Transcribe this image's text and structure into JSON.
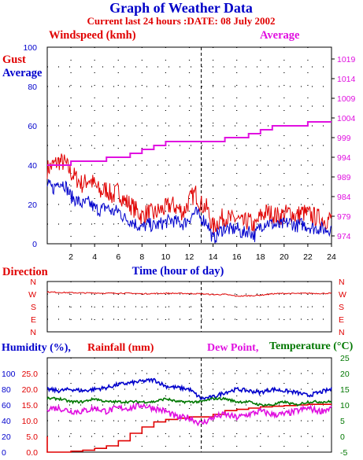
{
  "title": "Graph of Weather Data",
  "subtitle": "Current last 24 hours :DATE: 08 July 2002",
  "colors": {
    "title": "#0000c8",
    "red": "#e00000",
    "blue": "#0000cc",
    "magenta": "#e010e0",
    "green": "#007700",
    "grid": "#000000"
  },
  "labels": {
    "windspeed": "Windspeed (kmh)",
    "average_right": "Average",
    "gust": "Gust",
    "average_left": "Average",
    "time": "Time (hour of day)",
    "direction": "Direction",
    "humidity": "Humidity (%),",
    "rainfall": "Rainfall (mm)",
    "dewpoint": "Dew Point,",
    "temperature": "Temperature (°C)"
  },
  "chart_data": [
    {
      "type": "line",
      "title": "Windspeed (kmh)",
      "xlabel": "Time (hour of day)",
      "x_ticks": [
        "2",
        "4",
        "6",
        "8",
        "10",
        "12",
        "14",
        "16",
        "18",
        "20",
        "22",
        "24"
      ],
      "xlim": [
        0,
        24
      ],
      "y_ticks_left": [
        "100",
        "80",
        "60",
        "40",
        "20",
        "0"
      ],
      "ylim_left": [
        0,
        100
      ],
      "y_ticks_right": [
        "1019",
        "1014",
        "1009",
        "1004",
        "999",
        "994",
        "989",
        "984",
        "979",
        "974"
      ],
      "ylim_right": [
        972,
        1022
      ],
      "grid": "dotted",
      "series": [
        {
          "name": "Gust",
          "axis": "left",
          "color": "#e00000",
          "x": [
            0,
            0.5,
            1,
            1.5,
            2,
            2.5,
            3,
            3.5,
            4,
            4.5,
            5,
            5.5,
            6,
            6.5,
            7,
            7.5,
            8,
            8.5,
            9,
            9.5,
            10,
            10.5,
            11,
            11.5,
            12,
            12.5,
            13,
            13.5,
            14,
            14.5,
            15,
            15.5,
            16,
            16.5,
            17,
            17.5,
            18,
            18.5,
            19,
            19.5,
            20,
            20.5,
            21,
            21.5,
            22,
            22.5,
            23,
            23.5,
            24
          ],
          "values": [
            38,
            40,
            42,
            41,
            36,
            33,
            30,
            33,
            30,
            26,
            28,
            24,
            27,
            22,
            20,
            17,
            14,
            16,
            15,
            17,
            18,
            20,
            18,
            16,
            22,
            26,
            20,
            18,
            8,
            12,
            14,
            12,
            13,
            10,
            12,
            8,
            14,
            16,
            15,
            14,
            15,
            16,
            14,
            16,
            15,
            14,
            13,
            12,
            13
          ]
        },
        {
          "name": "Average",
          "axis": "left",
          "color": "#0000cc",
          "x": [
            0,
            0.5,
            1,
            1.5,
            2,
            2.5,
            3,
            3.5,
            4,
            4.5,
            5,
            5.5,
            6,
            6.5,
            7,
            7.5,
            8,
            8.5,
            9,
            9.5,
            10,
            10.5,
            11,
            11.5,
            12,
            12.5,
            13,
            13.5,
            14,
            14.5,
            15,
            15.5,
            16,
            16.5,
            17,
            17.5,
            18,
            18.5,
            19,
            19.5,
            20,
            20.5,
            21,
            21.5,
            22,
            22.5,
            23,
            23.5,
            24
          ],
          "values": [
            30,
            28,
            32,
            30,
            24,
            22,
            20,
            21,
            18,
            17,
            19,
            16,
            17,
            13,
            12,
            10,
            8,
            10,
            9,
            10,
            11,
            12,
            11,
            10,
            13,
            16,
            13,
            11,
            2,
            6,
            8,
            7,
            8,
            5,
            7,
            4,
            9,
            11,
            10,
            9,
            10,
            11,
            9,
            10,
            9,
            8,
            8,
            7,
            8
          ]
        },
        {
          "name": "Average",
          "axis": "right",
          "color": "#e010e0",
          "x": [
            0,
            1,
            2,
            3,
            4,
            5,
            6,
            7,
            8,
            8.5,
            9,
            10,
            12,
            13,
            14,
            15,
            16,
            17,
            18,
            19,
            20,
            22,
            24
          ],
          "values": [
            992,
            992,
            993,
            993,
            993,
            994,
            994,
            995,
            996,
            996,
            997,
            998,
            998,
            998,
            998,
            999,
            999,
            1000,
            1001,
            1002,
            1002,
            1003,
            1003
          ]
        }
      ]
    },
    {
      "type": "line",
      "title": "Direction",
      "xlim": [
        0,
        24
      ],
      "y_ticks": [
        "N",
        "W",
        "S",
        "E",
        "N"
      ],
      "grid": "dotted",
      "series": [
        {
          "name": "Direction",
          "color": "#e00000",
          "x": [
            0,
            1,
            2,
            3,
            4,
            5,
            6,
            7,
            8,
            9,
            10,
            11,
            12,
            13,
            14,
            15,
            16,
            17,
            18,
            19,
            20,
            21,
            22,
            23,
            24
          ],
          "values": [
            285,
            282,
            280,
            278,
            278,
            276,
            277,
            276,
            272,
            274,
            276,
            275,
            274,
            272,
            266,
            268,
            255,
            258,
            262,
            272,
            275,
            274,
            276,
            274,
            276
          ]
        }
      ]
    },
    {
      "type": "line",
      "xlim": [
        0,
        24
      ],
      "y_ticks_left_humidity": [
        "100",
        "80",
        "60",
        "40",
        "20",
        "0"
      ],
      "y_ticks_left_rainfall": [
        "25.0",
        "20.0",
        "15.0",
        "10.0",
        "5.0",
        "0.0"
      ],
      "y_ticks_right": [
        "25",
        "20",
        "15",
        "10",
        "5",
        "0",
        "-5"
      ],
      "grid": "dotted",
      "series": [
        {
          "name": "Humidity (%)",
          "color": "#0000cc",
          "x": [
            0,
            1,
            2,
            3,
            4,
            5,
            6,
            7,
            8,
            9,
            10,
            11,
            12,
            13,
            14,
            15,
            16,
            17,
            18,
            19,
            20,
            21,
            22,
            23,
            24
          ],
          "values": [
            80,
            78,
            80,
            78,
            80,
            82,
            86,
            88,
            90,
            92,
            84,
            82,
            80,
            68,
            70,
            76,
            80,
            78,
            76,
            80,
            78,
            76,
            72,
            76,
            80
          ]
        },
        {
          "name": "Rainfall (mm)",
          "color": "#e00000",
          "x": [
            0,
            0.6,
            2,
            3,
            4,
            5,
            6,
            7,
            8,
            9,
            10,
            11,
            12,
            13,
            14,
            15,
            16,
            17,
            18,
            19,
            20,
            21,
            22,
            23,
            24
          ],
          "values": [
            0,
            0,
            0.3,
            0.6,
            1.2,
            2.0,
            3.6,
            6.0,
            8.0,
            9.6,
            10.4,
            10.8,
            11.2,
            11.2,
            12.0,
            13.2,
            13.6,
            14.0,
            14.4,
            14.6,
            14.8,
            15.0,
            15.2,
            15.2,
            15.2
          ]
        },
        {
          "name": "Dew Point",
          "color": "#e010e0",
          "x": [
            0,
            1,
            2,
            3,
            4,
            5,
            6,
            7,
            8,
            9,
            10,
            11,
            12,
            13,
            14,
            15,
            16,
            17,
            18,
            19,
            20,
            21,
            22,
            23,
            24
          ],
          "values": [
            9,
            9,
            8,
            8,
            9,
            8,
            9,
            9,
            10,
            9,
            8,
            6,
            6,
            4,
            6,
            7,
            6,
            7,
            8,
            7,
            7,
            8,
            9,
            8,
            9
          ]
        },
        {
          "name": "Temperature",
          "color": "#007700",
          "x": [
            0,
            1,
            2,
            3,
            4,
            5,
            6,
            7,
            8,
            9,
            10,
            11,
            12,
            13,
            14,
            15,
            16,
            17,
            18,
            19,
            20,
            21,
            22,
            23,
            24
          ],
          "values": [
            12,
            12,
            11,
            11,
            12,
            11,
            11,
            11,
            11,
            11,
            12,
            11,
            11,
            11,
            12,
            12,
            11,
            11,
            10,
            10,
            11,
            10,
            11,
            11,
            11
          ]
        }
      ]
    }
  ]
}
